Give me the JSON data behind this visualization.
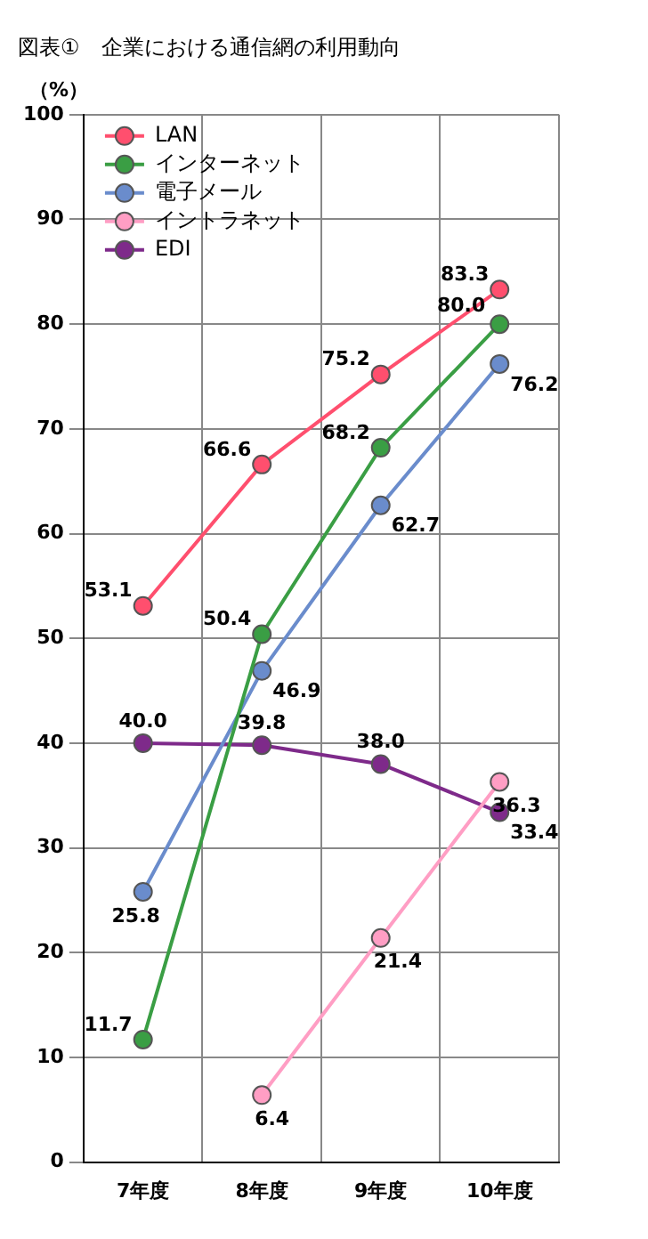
{
  "chart_data": {
    "type": "line",
    "title": "図表①　企業における通信網の利用動向",
    "ylabel": "（%）",
    "categories": [
      "7年度",
      "8年度",
      "9年度",
      "10年度"
    ],
    "series": [
      {
        "name": "LAN",
        "color": "#ff4f6e",
        "values": [
          53.1,
          66.6,
          75.2,
          83.3
        ],
        "value_labels": [
          "53.1",
          "66.6",
          "75.2",
          "83.3"
        ]
      },
      {
        "name": "インターネット",
        "color": "#3a9e44",
        "values": [
          11.7,
          50.4,
          68.2,
          80.0
        ],
        "value_labels": [
          "11.7",
          "50.4",
          "68.2",
          "80.0"
        ]
      },
      {
        "name": "電子メール",
        "color": "#6a8ccc",
        "values": [
          25.8,
          46.9,
          62.7,
          76.2
        ],
        "value_labels": [
          "25.8",
          "46.9",
          "62.7",
          "76.2"
        ]
      },
      {
        "name": "イントラネット",
        "color": "#ff9ec4",
        "values": [
          null,
          6.4,
          21.4,
          36.3
        ],
        "value_labels": [
          null,
          "6.4",
          "21.4",
          "36.3"
        ]
      },
      {
        "name": "EDI",
        "color": "#7e2a8a",
        "values": [
          40.0,
          39.8,
          38.0,
          33.4
        ],
        "value_labels": [
          "40.0",
          "39.8",
          "38.0",
          "33.4"
        ]
      }
    ],
    "ylim": [
      0,
      100
    ],
    "yticks": [
      0,
      10,
      20,
      30,
      40,
      50,
      60,
      70,
      80,
      90,
      100
    ],
    "grid": true,
    "legend": "top left",
    "marker": "circle"
  }
}
